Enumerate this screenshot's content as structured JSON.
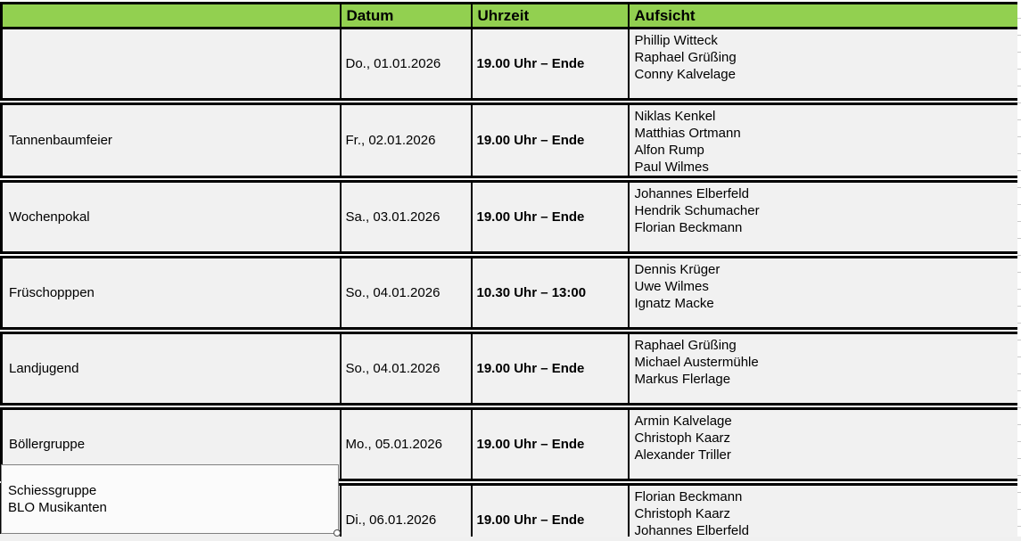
{
  "colors": {
    "header_bg": "#92D050",
    "row_bg": "#F1F1F1",
    "table_border": "#000000",
    "textbox_border": "#808080"
  },
  "table": {
    "headers": [
      "",
      "Datum",
      "Uhrzeit",
      "Aufsicht"
    ],
    "rows": [
      {
        "event": "",
        "date": "Do., 01.01.2026",
        "time": "19.00 Uhr – Ende",
        "supervisors": "Phillip Witteck\nRaphael Grüßing\nConny Kalvelage"
      },
      {
        "event": "Tannenbaumfeier",
        "date": "Fr., 02.01.2026",
        "time": "19.00 Uhr – Ende",
        "supervisors": "Niklas Kenkel\nMatthias Ortmann\nAlfon Rump\nPaul Wilmes"
      },
      {
        "event": "Wochenpokal",
        "date": "Sa., 03.01.2026",
        "time": "19.00 Uhr – Ende",
        "supervisors": "Johannes Elberfeld\nHendrik Schumacher\nFlorian Beckmann"
      },
      {
        "event": "Früschopppen",
        "date": "So., 04.01.2026",
        "time": "10.30 Uhr – 13:00",
        "supervisors": "Dennis Krüger\nUwe Wilmes\nIgnatz Macke"
      },
      {
        "event": "Landjugend",
        "date": "So., 04.01.2026",
        "time": "19.00 Uhr – Ende",
        "supervisors": "Raphael Grüßing\nMichael Austermühle\nMarkus Flerlage"
      },
      {
        "event": "Böllergruppe",
        "date": "Mo., 05.01.2026",
        "time": "19.00 Uhr – Ende",
        "supervisors": "Armin Kalvelage\nChristoph Kaarz\nAlexander Triller"
      },
      {
        "event": "Schiessgruppe\nBLO Musikanten",
        "date": "Di., 06.01.2026",
        "time": "19.00 Uhr – Ende",
        "supervisors": "Florian Beckmann\nChristoph Kaarz\nJohannes Elberfeld"
      }
    ]
  }
}
